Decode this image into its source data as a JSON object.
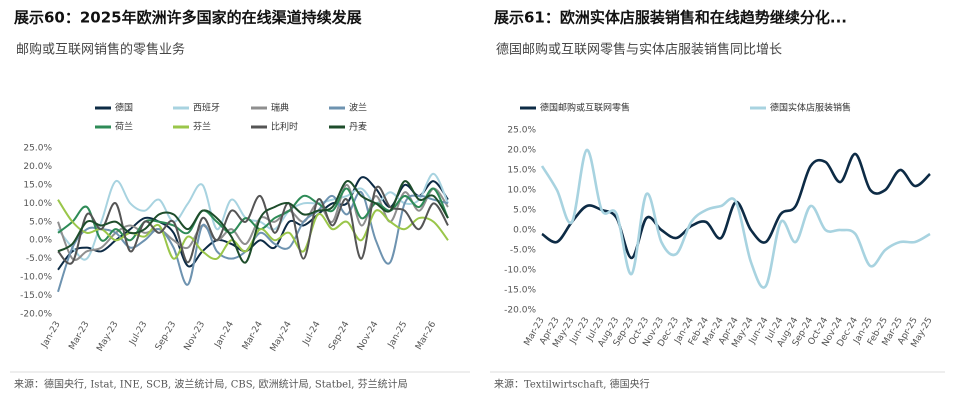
{
  "chart_data": [
    {
      "type": "line",
      "title": "展示60：2025年欧洲许多国家的在线渠道持续发展",
      "subtitle": "邮购或互联网销售的零售业务",
      "source": "来源：德国央行, Istat, INE, SCB, 波兰统计局, CBS, 欧洲统计局, Statbel, 芬兰统计局",
      "categories": [
        "Jan-23",
        null,
        "Mar-23",
        null,
        "May-23",
        null,
        "Jul-23",
        null,
        "Sep-23",
        null,
        "Nov-23",
        null,
        "Jan-24",
        null,
        "Mar-24",
        null,
        "May-24",
        null,
        "Jul-24",
        null,
        "Sep-24",
        null,
        "Nov-24",
        null,
        "Jan-25",
        null,
        "Mar-26",
        null
      ],
      "ylim": [
        -20,
        25
      ],
      "yticks": [
        {
          "value": -20,
          "label": "-20.0%"
        },
        {
          "value": -15,
          "label": "-15.0%"
        },
        {
          "value": -10,
          "label": "-10.0%"
        },
        {
          "value": -5,
          "label": "-5.0%"
        },
        {
          "value": 0,
          "label": "0.0%"
        },
        {
          "value": 5,
          "label": "5.0%"
        },
        {
          "value": 10,
          "label": "10.0%"
        },
        {
          "value": 15,
          "label": "15.0%"
        },
        {
          "value": 20,
          "label": "20.0%"
        },
        {
          "value": 25,
          "label": "25.0%"
        }
      ],
      "series": [
        {
          "name": "德国",
          "color": "#0d2b45",
          "values": [
            -8,
            -3,
            -2,
            -3,
            0,
            3,
            6,
            5,
            2,
            -7,
            -3,
            0,
            -1,
            -3,
            0,
            -2,
            5,
            4,
            7,
            10,
            10,
            17,
            14,
            9,
            15,
            12,
            16,
            11
          ]
        },
        {
          "name": "西班牙",
          "color": "#a8d3e0",
          "values": [
            3,
            -2,
            -5,
            5,
            16,
            10,
            8,
            11,
            5,
            10,
            15,
            3,
            11,
            6,
            5,
            3,
            8,
            10,
            10,
            11,
            12,
            14,
            10,
            13,
            10,
            11,
            18,
            10
          ]
        },
        {
          "name": "瑞典",
          "color": "#8f8f8f",
          "values": [
            5,
            -5,
            -3,
            -2,
            2,
            4,
            2,
            3,
            0,
            -2,
            4,
            0,
            3,
            -1,
            6,
            5,
            8,
            5,
            10,
            5,
            15,
            4,
            12,
            5,
            13,
            8,
            14,
            9
          ]
        },
        {
          "name": "波兰",
          "color": "#6e93b0",
          "values": [
            -14,
            -2,
            3,
            3,
            2,
            -2,
            0,
            3,
            -2,
            -12,
            4,
            -3,
            -5,
            -3,
            2,
            -1,
            -2,
            5,
            8,
            12,
            7,
            13,
            0,
            -6,
            10,
            12,
            11,
            10
          ]
        },
        {
          "name": "荷兰",
          "color": "#2e8b57",
          "values": [
            2,
            5,
            9,
            0,
            3,
            0,
            5,
            5,
            4,
            2,
            8,
            5,
            2,
            6,
            3,
            6,
            8,
            12,
            10,
            8,
            14,
            6,
            10,
            8,
            12,
            9,
            14,
            6
          ]
        },
        {
          "name": "芬兰",
          "color": "#9ac64a",
          "values": [
            11,
            5,
            2,
            3,
            0,
            2,
            1,
            4,
            -5,
            1,
            -3,
            -5,
            0,
            -3,
            3,
            0,
            2,
            -3,
            7,
            3,
            5,
            0,
            8,
            5,
            3,
            6,
            5,
            0
          ]
        },
        {
          "name": "比利时",
          "color": "#555555",
          "values": [
            -3,
            -6,
            7,
            3,
            10,
            -3,
            5,
            2,
            5,
            -6,
            6,
            0,
            8,
            5,
            12,
            2,
            10,
            -5,
            11,
            4,
            11,
            -5,
            14,
            9,
            8,
            3,
            10,
            4
          ]
        },
        {
          "name": "丹麦",
          "color": "#1e4d2b",
          "values": [
            -3,
            -1,
            5,
            4,
            5,
            2,
            3,
            7,
            7,
            3,
            8,
            6,
            1,
            -6,
            6,
            9,
            10,
            7,
            8,
            9,
            16,
            12,
            10,
            8,
            16,
            11,
            12,
            6
          ]
        }
      ]
    },
    {
      "type": "line",
      "title": "展示61：欧洲实体店服装销售和在线趋势继续分化...",
      "subtitle": "德国邮购或互联网零售与实体店服装销售同比增长",
      "source": "来源：Textilwirtschaft, 德国央行",
      "categories": [
        "Mar-23",
        "Apr-23",
        "May-23",
        "Jun-23",
        "Jul-23",
        "Aug-23",
        "Sep-23",
        "Oct-23",
        "Nov-23",
        "Dec-23",
        "Jan-24",
        "Feb-24",
        "Mar-24",
        "Apr-24",
        "May-24",
        "Jun-24",
        "Jul-24",
        "Aug-24",
        "Sep-24",
        "Oct-24",
        "Nov-24",
        "Dec-24",
        "Jan-25",
        "Feb-25",
        "Mar-25",
        "Apr-25",
        "May-25"
      ],
      "ylim": [
        -20,
        25
      ],
      "yticks": [
        {
          "value": -20,
          "label": "-20.0%"
        },
        {
          "value": -15,
          "label": "-15.0%"
        },
        {
          "value": -10,
          "label": "-10.0%"
        },
        {
          "value": -5,
          "label": "-5.0%"
        },
        {
          "value": 0,
          "label": "0.0%"
        },
        {
          "value": 5,
          "label": "5.0%"
        },
        {
          "value": 10,
          "label": "10.0%"
        },
        {
          "value": 15,
          "label": "15.0%"
        },
        {
          "value": 20,
          "label": "20.0%"
        },
        {
          "value": 25,
          "label": "25.0%"
        }
      ],
      "series": [
        {
          "name": "德国邮购或互联网零售",
          "color": "#0d2b45",
          "values": [
            -1,
            -3,
            2,
            6,
            5,
            3,
            -7,
            3,
            0,
            -2,
            1,
            2,
            -2,
            7,
            0,
            -3,
            4,
            6,
            16,
            17,
            12,
            19,
            10,
            10,
            15,
            11,
            14
          ]
        },
        {
          "name": "德国实体店服装销售",
          "color": "#a8d3e0",
          "values": [
            16,
            10,
            2,
            20,
            5,
            4,
            -11,
            9,
            -3,
            -6,
            2,
            5,
            6,
            7,
            -8,
            -14,
            2,
            -3,
            6,
            0,
            0,
            -1,
            -9,
            -5,
            -3,
            -3,
            -1
          ]
        }
      ]
    }
  ]
}
